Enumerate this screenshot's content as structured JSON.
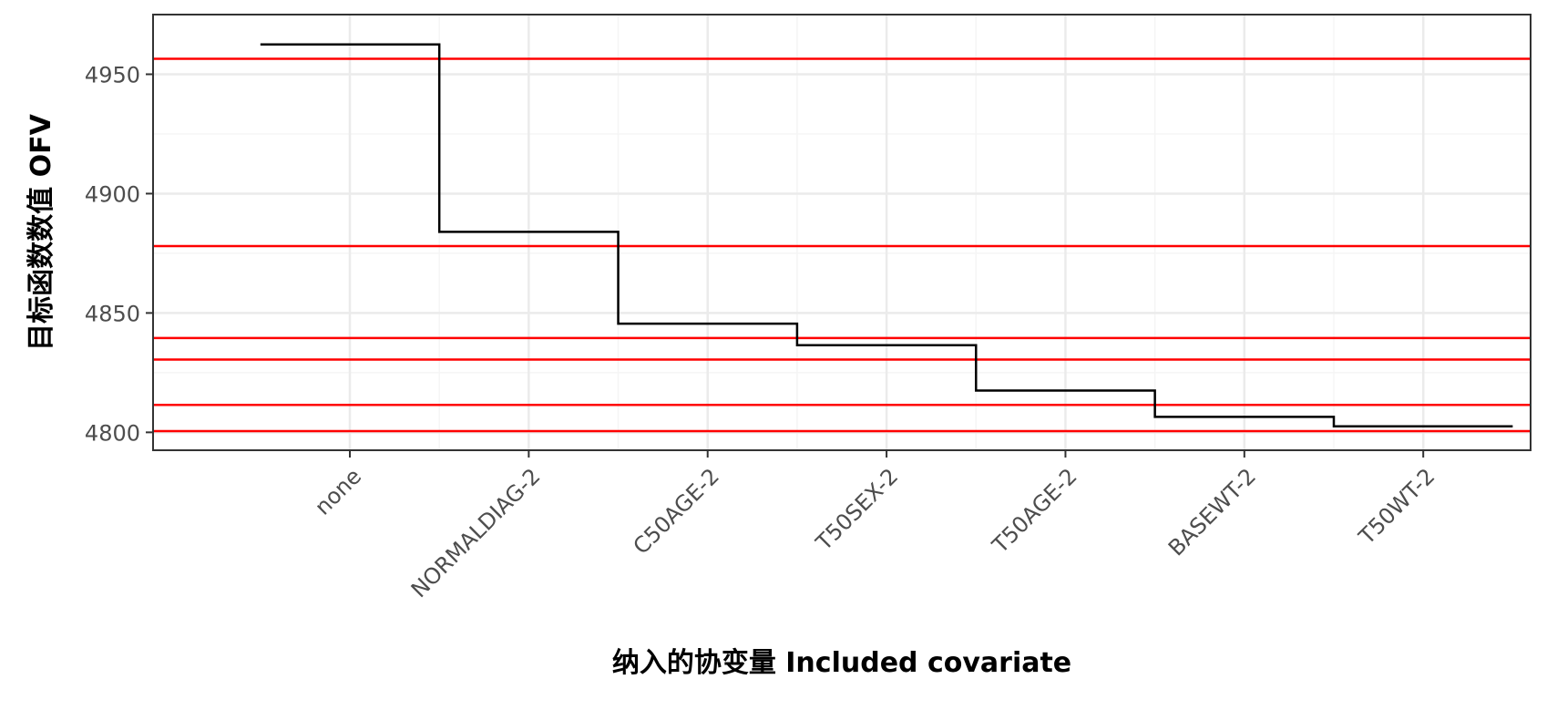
{
  "chart_data": {
    "type": "line",
    "step": true,
    "categories": [
      "none",
      "NORMALDIAG-2",
      "C50AGE-2",
      "T50SEX-2",
      "T50AGE-2",
      "BASEWT-2",
      "T50WT-2"
    ],
    "series": [
      {
        "values": [
          4962.5,
          4884,
          4845.5,
          4836.5,
          4817.5,
          4806.5,
          4802.5
        ]
      }
    ],
    "reference_lines": [
      4956.5,
      4878,
      4839.5,
      4830.5,
      4811.5,
      4800.5
    ],
    "xlabel": "纳入的协变量 Included covariate",
    "ylabel": "目标函数数值 OFV",
    "yticks": [
      4800,
      4850,
      4900,
      4950
    ],
    "ylim": [
      4792.5,
      4975
    ],
    "grid": true,
    "legend": "none",
    "colors": {
      "step_line": "#000000",
      "reference_line": "#ff0000",
      "grid_major": "#ebebeb",
      "grid_minor": "#f5f5f5",
      "panel_border": "#333333"
    }
  }
}
